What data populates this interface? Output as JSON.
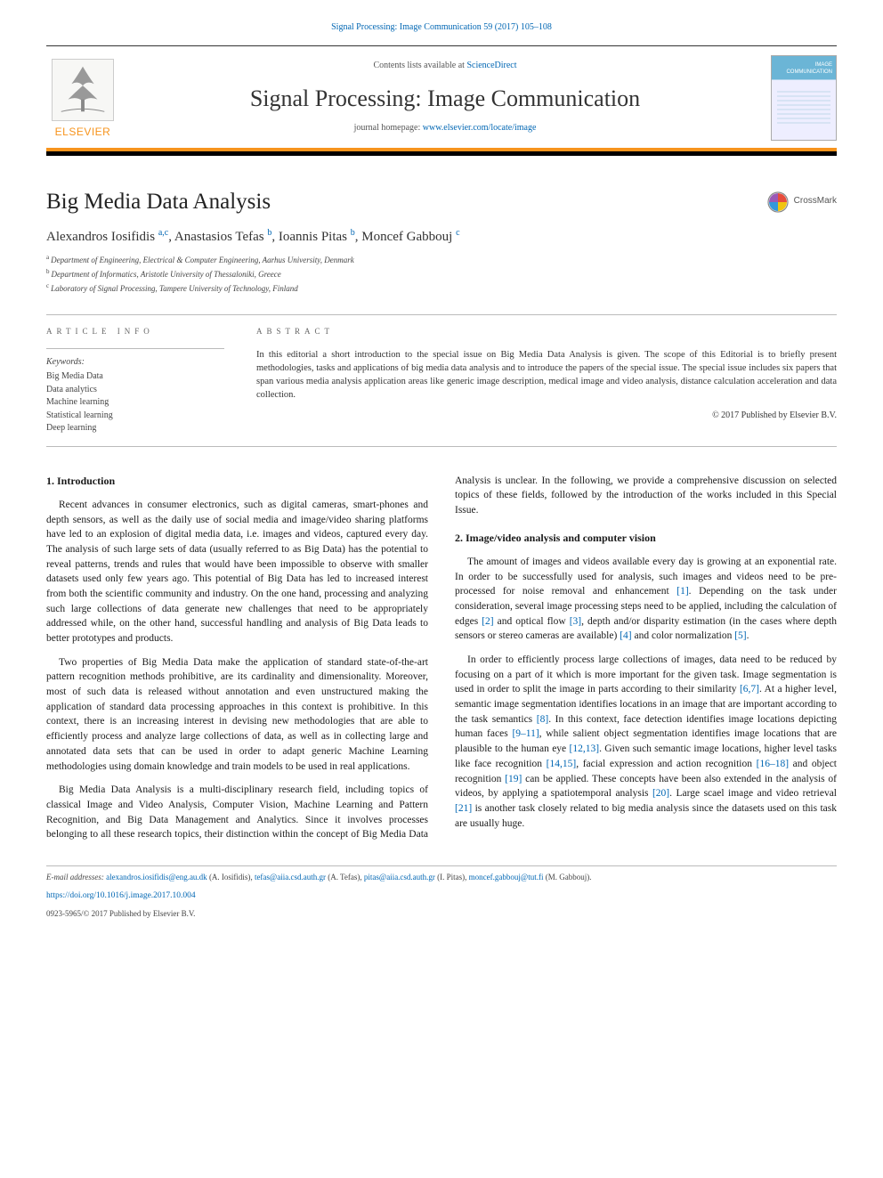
{
  "top_citation": "Signal Processing: Image Communication 59 (2017) 105–108",
  "header": {
    "contents_prefix": "Contents lists available at ",
    "contents_link": "ScienceDirect",
    "journal_title": "Signal Processing: Image Communication",
    "homepage_prefix": "journal homepage: ",
    "homepage_link": "www.elsevier.com/locate/image",
    "logo_text": "ELSEVIER",
    "cover_label": "IMAGE COMMUNICATION"
  },
  "article_title": "Big Media Data Analysis",
  "crossmark": "CrossMark",
  "authors_html": "Alexandros Iosifidis|a,c|, Anastasios Tefas|b|, Ioannis Pitas|b|, Moncef Gabbouj|c|",
  "authors": [
    {
      "name": "Alexandros Iosifidis",
      "sup": "a,c"
    },
    {
      "name": "Anastasios Tefas",
      "sup": "b"
    },
    {
      "name": "Ioannis Pitas",
      "sup": "b"
    },
    {
      "name": "Moncef Gabbouj",
      "sup": "c"
    }
  ],
  "affiliations": [
    {
      "sup": "a",
      "text": "Department of Engineering, Electrical & Computer Engineering, Aarhus University, Denmark"
    },
    {
      "sup": "b",
      "text": "Department of Informatics, Aristotle University of Thessaloniki, Greece"
    },
    {
      "sup": "c",
      "text": "Laboratory of Signal Processing, Tampere University of Technology, Finland"
    }
  ],
  "labels": {
    "article_info": "article info",
    "abstract": "abstract",
    "keywords_head": "Keywords:"
  },
  "keywords": [
    "Big Media Data",
    "Data analytics",
    "Machine learning",
    "Statistical learning",
    "Deep learning"
  ],
  "abstract": "In this editorial a short introduction to the special issue on Big Media Data Analysis is given. The scope of this Editorial is to briefly present methodologies, tasks and applications of big media data analysis and to introduce the papers of the special issue. The special issue includes six papers that span various media analysis application areas like generic image description, medical image and video analysis, distance calculation acceleration and data collection.",
  "copyright": "© 2017 Published by Elsevier B.V.",
  "sections": {
    "s1_title": "1. Introduction",
    "s1_p1": "Recent advances in consumer electronics, such as digital cameras, smart-phones and depth sensors, as well as the daily use of social media and image/video sharing platforms have led to an explosion of digital media data, i.e. images and videos, captured every day. The analysis of such large sets of data (usually referred to as Big Data) has the potential to reveal patterns, trends and rules that would have been impossible to observe with smaller datasets used only few years ago. This potential of Big Data has led to increased interest from both the scientific community and industry. On the one hand, processing and analyzing such large collections of data generate new challenges that need to be appropriately addressed while, on the other hand, successful handling and analysis of Big Data leads to better prototypes and products.",
    "s1_p2": "Two properties of Big Media Data make the application of standard state-of-the-art pattern recognition methods prohibitive, are its cardinality and dimensionality. Moreover, most of such data is released without annotation and even unstructured making the application of standard data processing approaches in this context is prohibitive. In this context, there is an increasing interest in devising new methodologies that are able to efficiently process and analyze large collections of data, as well as in collecting large and annotated data sets that can be used in order to adapt generic Machine Learning methodologies using domain knowledge and train models to be used in real applications.",
    "s1_p3": "Big Media Data Analysis is a multi-disciplinary research field, including topics of classical Image and Video Analysis, Computer Vision, Machine Learning and Pattern Recognition, and Big Data Management and Analytics. Since it involves processes belonging to all these research topics, their distinction within the concept of Big Media Data Analysis is unclear. In the following, we provide a comprehensive discussion on selected topics of these fields, followed by the introduction of the works included in this Special Issue.",
    "s2_title": "2. Image/video analysis and computer vision",
    "s2_p1": "The amount of images and videos available every day is growing at an exponential rate. In order to be successfully used for analysis, such images and videos need to be pre-processed for noise removal and enhancement [1]. Depending on the task under consideration, several image processing steps need to be applied, including the calculation of edges [2] and optical flow [3], depth and/or disparity estimation (in the cases where depth sensors or stereo cameras are available) [4] and color normalization [5].",
    "s2_p2": "In order to efficiently process large collections of images, data need to be reduced by focusing on a part of it which is more important for the given task. Image segmentation is used in order to split the image in parts according to their similarity [6,7]. At a higher level, semantic image segmentation identifies locations in an image that are important according to the task semantics [8]. In this context, face detection identifies image locations depicting human faces [9–11], while salient object segmentation identifies image locations that are plausible to the human eye [12,13]. Given such semantic image locations, higher level tasks like face recognition [14,15], facial expression and action recognition [16–18] and object recognition [19] can be applied. These concepts have been also extended in the analysis of videos, by applying a spatiotemporal analysis [20]. Large scael image and video retrieval [21] is another task closely related to big media analysis since the datasets used on this task are usually huge."
  },
  "footer": {
    "email_label": "E-mail addresses: ",
    "emails": [
      {
        "addr": "alexandros.iosifidis@eng.au.dk",
        "who": "(A. Iosifidis)"
      },
      {
        "addr": "tefas@aiia.csd.auth.gr",
        "who": "(A. Tefas)"
      },
      {
        "addr": "pitas@aiia.csd.auth.gr",
        "who": "(I. Pitas)"
      },
      {
        "addr": "moncef.gabbouj@tut.fi",
        "who": "(M. Gabbouj)"
      }
    ],
    "doi": "https://doi.org/10.1016/j.image.2017.10.004",
    "issn": "0923-5965/© 2017 Published by Elsevier B.V."
  },
  "colors": {
    "link": "#0066b3",
    "accent": "#f7941d",
    "text": "#1a1a1a",
    "rule": "#bbbbbb"
  }
}
